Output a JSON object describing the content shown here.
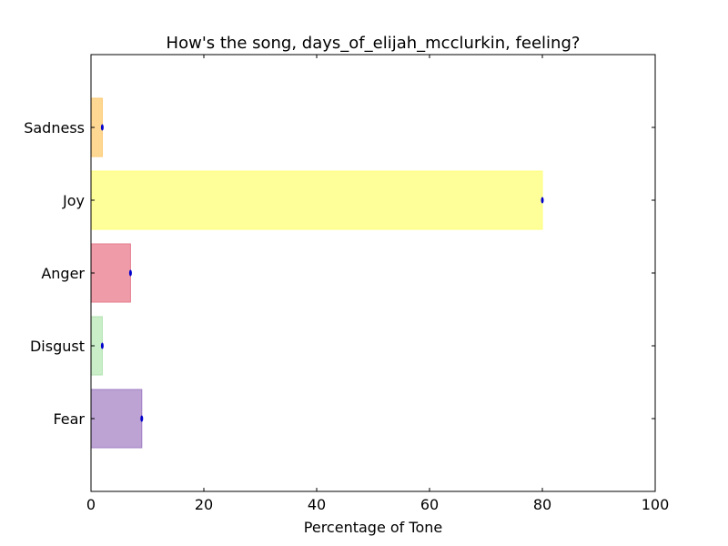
{
  "chart_data": {
    "type": "bar",
    "orientation": "horizontal",
    "title": "How's the song, days_of_elijah_mcclurkin, feeling?",
    "xlabel": "Percentage of Tone",
    "ylabel": "",
    "xlim": [
      0,
      100
    ],
    "xticks": [
      "0",
      "20",
      "40",
      "60",
      "80",
      "100"
    ],
    "categories": [
      "Fear",
      "Disgust",
      "Anger",
      "Joy",
      "Sadness"
    ],
    "values": [
      9,
      2,
      7,
      80,
      2
    ],
    "colors": [
      "#bca3d3",
      "#c9eec8",
      "#ef9ca8",
      "#ffff99",
      "#fed893"
    ],
    "edge_colors": [
      "#a07cc4",
      "#b2e3b0",
      "#e57e8e",
      "#ffff80",
      "#fdc970"
    ],
    "marker_color": "#0000cc",
    "grid": false,
    "legend": "none"
  }
}
